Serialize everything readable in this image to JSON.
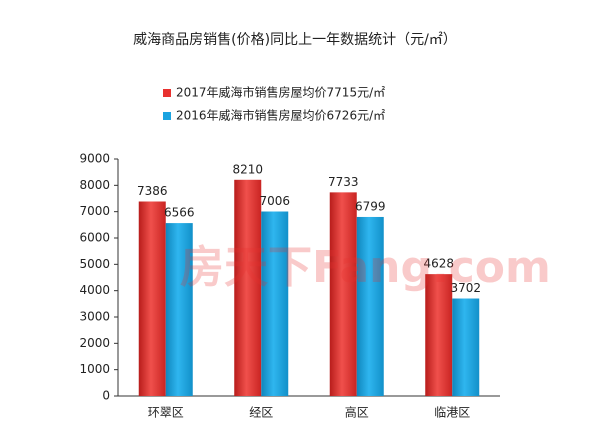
{
  "chart_data": {
    "type": "bar",
    "title": "威海商品房销售(价格)同比上一年数据统计（元/㎡）",
    "watermark": "房天下Fang.com",
    "categories": [
      "环翠区",
      "经区",
      "高区",
      "临港区"
    ],
    "series": [
      {
        "name": "2017年威海市销售房屋均价7715元/㎡",
        "color": "#e8312f",
        "values": [
          7386,
          8210,
          7733,
          4628
        ]
      },
      {
        "name": "2016年威海市销售房屋均价6726元/㎡",
        "color": "#1aa3e0",
        "values": [
          6566,
          7006,
          6799,
          3702
        ]
      }
    ],
    "ylim": [
      0,
      9000
    ],
    "yticks": [
      0,
      1000,
      2000,
      3000,
      4000,
      5000,
      6000,
      7000,
      8000,
      9000
    ],
    "grid": false
  }
}
